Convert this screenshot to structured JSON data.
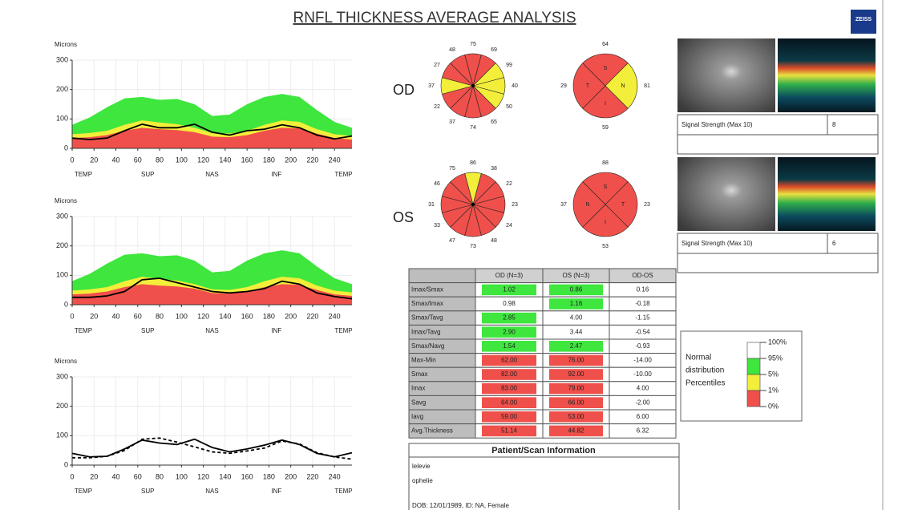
{
  "title": "RNFL THICKNESS AVERAGE ANALYSIS",
  "logo": "ZEISS",
  "eye_labels": [
    "OD",
    "OS"
  ],
  "chart_data": [
    {
      "type": "tsnit",
      "y_label": "Microns",
      "x": [
        0,
        16,
        32,
        48,
        64,
        80,
        96,
        112,
        128,
        144,
        160,
        176,
        192,
        208,
        224,
        240,
        256
      ],
      "xlim": [
        0,
        256
      ],
      "ylim": [
        0,
        300
      ],
      "xticks": [
        0,
        20,
        40,
        60,
        80,
        100,
        120,
        140,
        160,
        180,
        200,
        220,
        240
      ],
      "yticks": [
        0,
        100,
        200,
        300
      ],
      "x_regions": [
        "TEMP",
        "SUP",
        "NAS",
        "INF",
        "TEMP"
      ],
      "grid": true,
      "bands": [
        {
          "color": "#3ee63e",
          "values": [
            80,
            105,
            140,
            170,
            175,
            165,
            168,
            150,
            110,
            115,
            150,
            175,
            185,
            175,
            130,
            90,
            70
          ]
        },
        {
          "color": "#f2ee3a",
          "values": [
            48,
            52,
            60,
            80,
            95,
            88,
            82,
            70,
            52,
            50,
            60,
            80,
            95,
            90,
            65,
            48,
            42
          ]
        },
        {
          "color": "#f0504b",
          "values": [
            35,
            38,
            45,
            60,
            70,
            65,
            62,
            55,
            40,
            38,
            45,
            60,
            70,
            68,
            50,
            35,
            30
          ]
        }
      ],
      "series": [
        {
          "color": "#000000",
          "values": [
            35,
            30,
            35,
            60,
            82,
            70,
            70,
            82,
            55,
            45,
            60,
            65,
            80,
            70,
            45,
            32,
            42
          ]
        }
      ]
    },
    {
      "type": "tsnit",
      "y_label": "Microns",
      "x": [
        0,
        16,
        32,
        48,
        64,
        80,
        96,
        112,
        128,
        144,
        160,
        176,
        192,
        208,
        224,
        240,
        256
      ],
      "xlim": [
        0,
        256
      ],
      "ylim": [
        0,
        300
      ],
      "xticks": [
        0,
        20,
        40,
        60,
        80,
        100,
        120,
        140,
        160,
        180,
        200,
        220,
        240
      ],
      "yticks": [
        0,
        100,
        200,
        300
      ],
      "x_regions": [
        "TEMP",
        "SUP",
        "NAS",
        "INF",
        "TEMP"
      ],
      "grid": true,
      "bands": [
        {
          "color": "#3ee63e",
          "values": [
            80,
            105,
            140,
            170,
            175,
            165,
            168,
            150,
            110,
            115,
            150,
            175,
            185,
            175,
            130,
            90,
            70
          ]
        },
        {
          "color": "#f2ee3a",
          "values": [
            48,
            52,
            60,
            80,
            95,
            88,
            82,
            70,
            52,
            50,
            60,
            80,
            95,
            90,
            65,
            48,
            42
          ]
        },
        {
          "color": "#f0504b",
          "values": [
            35,
            38,
            45,
            60,
            70,
            65,
            62,
            55,
            40,
            38,
            45,
            60,
            70,
            68,
            50,
            35,
            30
          ]
        }
      ],
      "series": [
        {
          "color": "#000000",
          "values": [
            25,
            25,
            30,
            45,
            85,
            90,
            75,
            60,
            45,
            40,
            45,
            55,
            80,
            70,
            40,
            28,
            20
          ]
        }
      ]
    },
    {
      "type": "tsnit",
      "y_label": "Microns",
      "x": [
        0,
        16,
        32,
        48,
        64,
        80,
        96,
        112,
        128,
        144,
        160,
        176,
        192,
        208,
        224,
        240,
        256
      ],
      "xlim": [
        0,
        256
      ],
      "ylim": [
        0,
        300
      ],
      "xticks": [
        0,
        20,
        40,
        60,
        80,
        100,
        120,
        140,
        160,
        180,
        200,
        220,
        240
      ],
      "yticks": [
        0,
        100,
        200,
        300
      ],
      "x_regions": [
        "TEMP",
        "SUP",
        "NAS",
        "INF",
        "TEMP"
      ],
      "grid": true,
      "bands": [],
      "series": [
        {
          "color": "#000000",
          "values": [
            40,
            28,
            30,
            55,
            85,
            75,
            70,
            88,
            60,
            45,
            55,
            68,
            85,
            70,
            40,
            28,
            42
          ]
        },
        {
          "color": "#000000",
          "dash": true,
          "values": [
            25,
            25,
            30,
            50,
            88,
            92,
            78,
            62,
            45,
            40,
            48,
            58,
            82,
            72,
            42,
            28,
            20
          ]
        }
      ]
    },
    {
      "type": "clock",
      "values": [
        75,
        69,
        99,
        40,
        50,
        65,
        74,
        37,
        22,
        37,
        27,
        48
      ],
      "colors": [
        "#f0504b",
        "#f0504b",
        "#f2ee3a",
        "#f2ee3a",
        "#f2ee3a",
        "#f0504b",
        "#f0504b",
        "#f0504b",
        "#f0504b",
        "#f2ee3a",
        "#f0504b",
        "#f0504b"
      ]
    },
    {
      "type": "quadrant",
      "values": [
        64,
        81,
        59,
        29
      ],
      "sector_labels": [
        "S",
        "N",
        "I",
        "T"
      ],
      "colors": [
        "#f0504b",
        "#f2ee3a",
        "#f0504b",
        "#f0504b"
      ]
    },
    {
      "type": "clock",
      "values": [
        86,
        38,
        22,
        23,
        24,
        48,
        73,
        47,
        33,
        31,
        46,
        75
      ],
      "colors": [
        "#f2ee3a",
        "#f0504b",
        "#f0504b",
        "#f0504b",
        "#f0504b",
        "#f0504b",
        "#f0504b",
        "#f0504b",
        "#f0504b",
        "#f0504b",
        "#f0504b",
        "#f0504b"
      ]
    },
    {
      "type": "quadrant",
      "values": [
        88,
        23,
        53,
        37
      ],
      "sector_labels": [
        "S",
        "T",
        "I",
        "N"
      ],
      "colors": [
        "#f0504b",
        "#f0504b",
        "#f0504b",
        "#f0504b"
      ]
    }
  ],
  "scans": [
    {
      "signal_label": "Signal Strength (Max 10)",
      "signal_value": "8"
    },
    {
      "signal_label": "Signal Strength (Max 10)",
      "signal_value": "6"
    }
  ],
  "table": {
    "header": [
      "OD (N=3)",
      "OS (N=3)",
      "OD-OS"
    ],
    "rows": [
      [
        "Imax/Smax",
        "1.02",
        "0.86",
        "0.16"
      ],
      [
        "Smax/Imax",
        "0.98",
        "1.16",
        "-0.18"
      ],
      [
        "Smax/Tavg",
        "2.85",
        "4.00",
        "-1.15"
      ],
      [
        "Imax/Tavg",
        "2.90",
        "3.44",
        "-0.54"
      ],
      [
        "Smax/Navg",
        "1.54",
        "2.47",
        "-0.93"
      ],
      [
        "Max-Min",
        "62.00",
        "76.00",
        "-14.00"
      ],
      [
        "Smax",
        "82.00",
        "92.00",
        "-10.00"
      ],
      [
        "Imax",
        "83.00",
        "79.00",
        "4.00"
      ],
      [
        "Savg",
        "64.00",
        "66.00",
        "-2.00"
      ],
      [
        "Iavg",
        "59.00",
        "53.00",
        "6.00"
      ],
      [
        "Avg.Thickness",
        "51.14",
        "44.82",
        "6.32"
      ]
    ],
    "cell_colors": [
      [
        "#3ee63e",
        "#3ee63e"
      ],
      [
        "#ffffff",
        "#3ee63e"
      ],
      [
        "#3ee63e",
        "#ffffff"
      ],
      [
        "#3ee63e",
        "#ffffff"
      ],
      [
        "#3ee63e",
        "#3ee63e"
      ],
      [
        "#f0504b",
        "#f0504b"
      ],
      [
        "#f0504b",
        "#f0504b"
      ],
      [
        "#f0504b",
        "#f0504b"
      ],
      [
        "#f0504b",
        "#f0504b"
      ],
      [
        "#f0504b",
        "#f0504b"
      ],
      [
        "#f0504b",
        "#f0504b"
      ]
    ]
  },
  "patient": {
    "title": "Patient/Scan Information",
    "lines": [
      "lelevie",
      "ophelie",
      "DOB: 12/01/1989, ID: NA, Female"
    ]
  },
  "legend": {
    "title_lines": [
      "Normal",
      "distribution",
      "Percentiles"
    ],
    "levels": [
      "100%",
      "95%",
      "5%",
      "1%",
      "0%"
    ],
    "colors": [
      "#ffffff",
      "#3ee63e",
      "#f2ee3a",
      "#f0504b"
    ]
  }
}
